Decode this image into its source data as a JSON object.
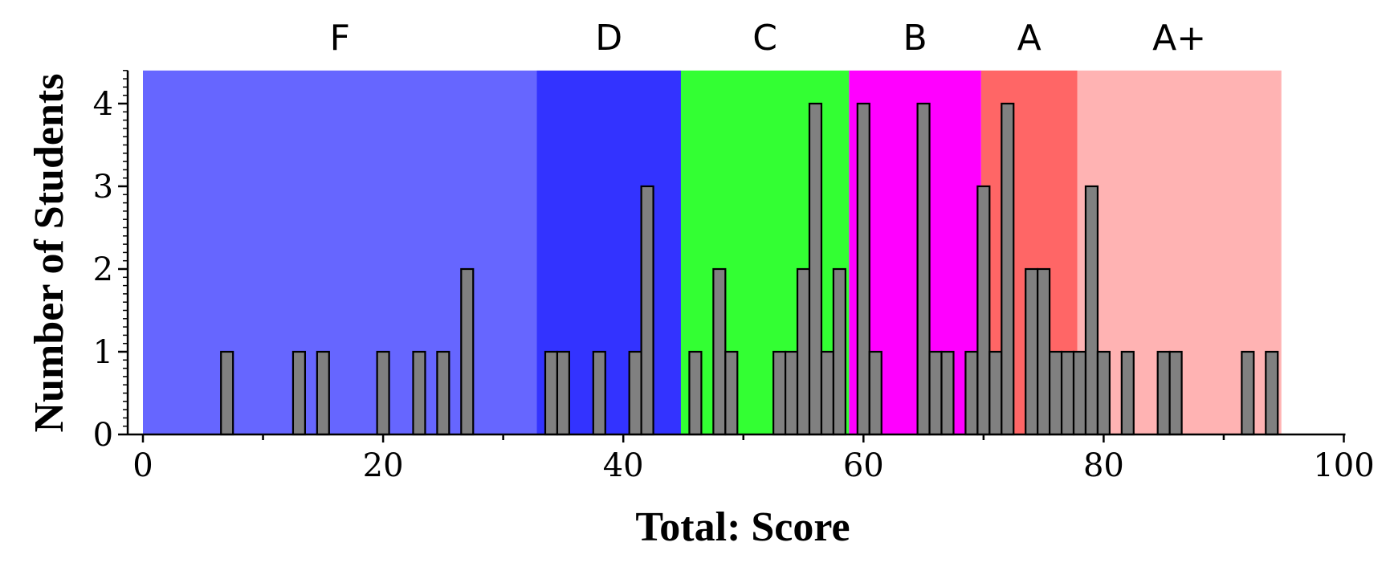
{
  "chart_data": {
    "type": "bar",
    "xlabel": "Total: Score",
    "ylabel": "Number of Students",
    "xlim": [
      -1,
      100
    ],
    "ylim": [
      0,
      4.4
    ],
    "x_ticks": [
      0,
      20,
      40,
      60,
      80,
      100
    ],
    "y_ticks": [
      0,
      1,
      2,
      3,
      4
    ],
    "bin_width": 1,
    "bar_color": "#808080",
    "grade_bands": [
      {
        "label": "F",
        "from": 0,
        "to": 32.8,
        "color": "#6666ff"
      },
      {
        "label": "D",
        "from": 32.8,
        "to": 44.8,
        "color": "#3333ff"
      },
      {
        "label": "C",
        "from": 44.8,
        "to": 58.8,
        "color": "#33ff33"
      },
      {
        "label": "B",
        "from": 58.8,
        "to": 69.8,
        "color": "#ff00ff"
      },
      {
        "label": "A",
        "from": 69.8,
        "to": 77.8,
        "color": "#ff6666"
      },
      {
        "label": "A+",
        "from": 77.8,
        "to": 94.8,
        "color": "#ffb3b3"
      }
    ],
    "bins": [
      {
        "x": 7,
        "count": 1
      },
      {
        "x": 13,
        "count": 1
      },
      {
        "x": 15,
        "count": 1
      },
      {
        "x": 20,
        "count": 1
      },
      {
        "x": 23,
        "count": 1
      },
      {
        "x": 25,
        "count": 1
      },
      {
        "x": 27,
        "count": 2
      },
      {
        "x": 34,
        "count": 1
      },
      {
        "x": 35,
        "count": 1
      },
      {
        "x": 38,
        "count": 1
      },
      {
        "x": 41,
        "count": 1
      },
      {
        "x": 42,
        "count": 3
      },
      {
        "x": 46,
        "count": 1
      },
      {
        "x": 48,
        "count": 2
      },
      {
        "x": 49,
        "count": 1
      },
      {
        "x": 53,
        "count": 1
      },
      {
        "x": 54,
        "count": 1
      },
      {
        "x": 55,
        "count": 2
      },
      {
        "x": 56,
        "count": 4
      },
      {
        "x": 57,
        "count": 1
      },
      {
        "x": 58,
        "count": 2
      },
      {
        "x": 60,
        "count": 4
      },
      {
        "x": 61,
        "count": 1
      },
      {
        "x": 65,
        "count": 4
      },
      {
        "x": 66,
        "count": 1
      },
      {
        "x": 67,
        "count": 1
      },
      {
        "x": 69,
        "count": 1
      },
      {
        "x": 70,
        "count": 3
      },
      {
        "x": 71,
        "count": 1
      },
      {
        "x": 72,
        "count": 4
      },
      {
        "x": 74,
        "count": 2
      },
      {
        "x": 75,
        "count": 2
      },
      {
        "x": 76,
        "count": 1
      },
      {
        "x": 77,
        "count": 1
      },
      {
        "x": 78,
        "count": 1
      },
      {
        "x": 79,
        "count": 3
      },
      {
        "x": 80,
        "count": 1
      },
      {
        "x": 82,
        "count": 1
      },
      {
        "x": 85,
        "count": 1
      },
      {
        "x": 86,
        "count": 1
      },
      {
        "x": 92,
        "count": 1
      },
      {
        "x": 94,
        "count": 1
      }
    ]
  }
}
